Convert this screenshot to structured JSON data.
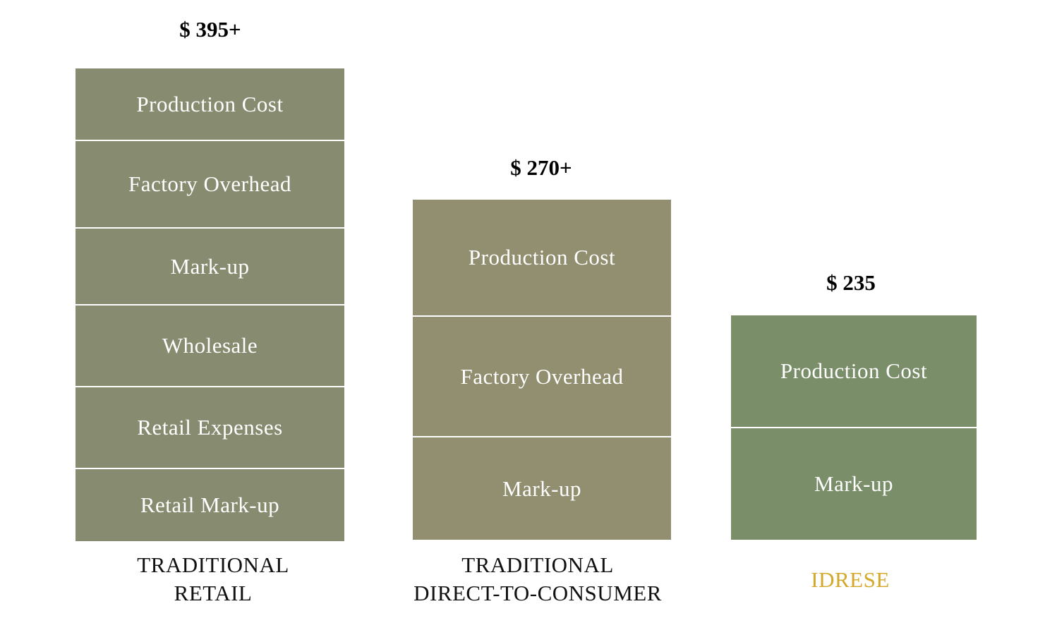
{
  "chart_data": {
    "type": "stacked-bar",
    "bars": [
      {
        "category_lines": [
          "TRADITIONAL",
          "RETAIL"
        ],
        "price_label": "$ 395+",
        "color": "#878b6f",
        "label_color": "#111111",
        "segments": [
          "Production Cost",
          "Factory Overhead",
          "Mark-up",
          "Wholesale",
          "Retail Expenses",
          "Retail Mark-up"
        ]
      },
      {
        "category_lines": [
          "TRADITIONAL",
          "DIRECT-TO-CONSUMER"
        ],
        "price_label": "$ 270+",
        "color": "#918f6f",
        "label_color": "#111111",
        "segments": [
          "Production Cost",
          "Factory Overhead",
          "Mark-up"
        ]
      },
      {
        "category_lines": [
          "IDRESE"
        ],
        "price_label": "$ 235",
        "color": "#798e69",
        "label_color": "#d4a82a",
        "segments": [
          "Production Cost",
          "Mark-up"
        ]
      }
    ]
  }
}
